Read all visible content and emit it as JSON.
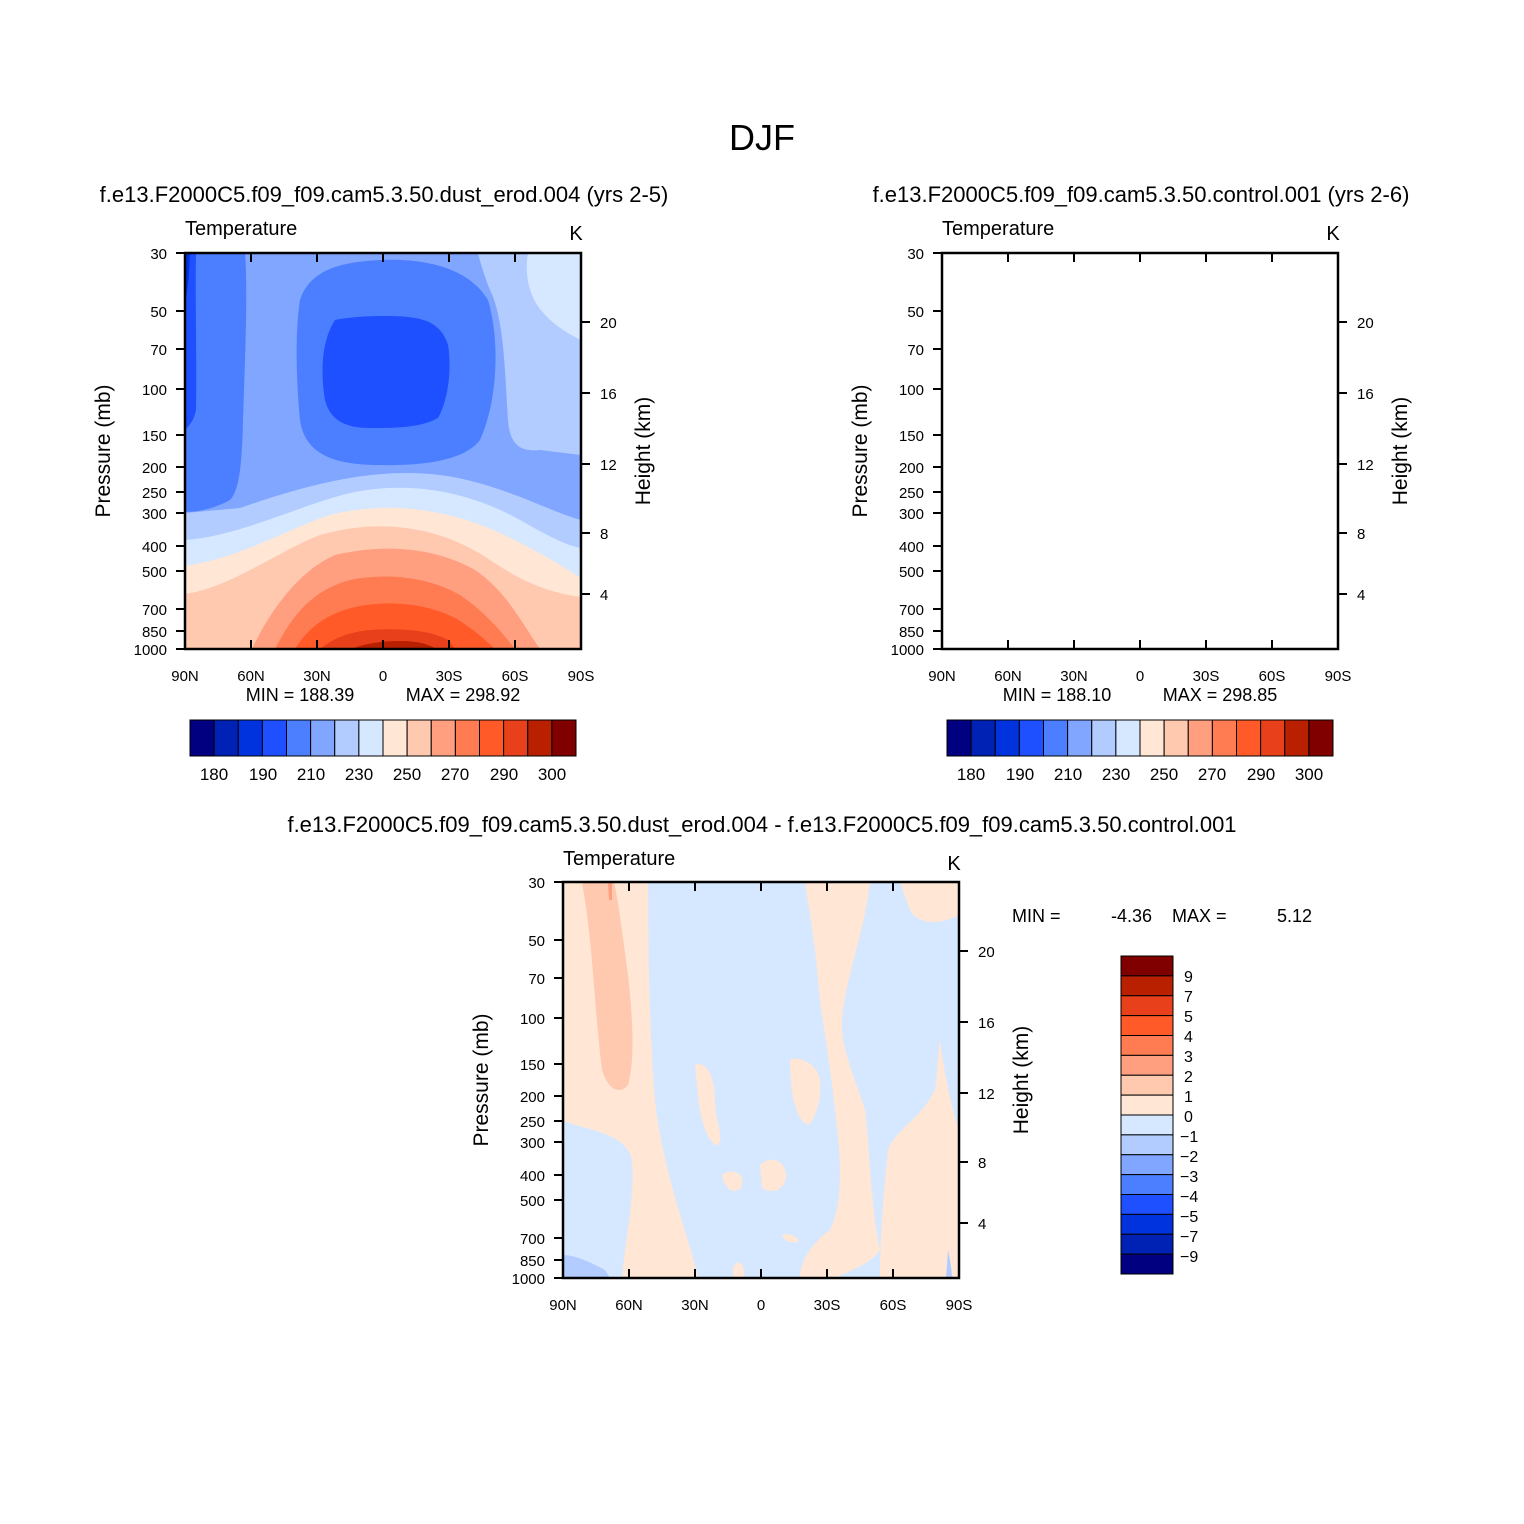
{
  "figure": {
    "title": "DJF"
  },
  "colors": {
    "abs_palette": [
      "#000080",
      "#0022b4",
      "#0033dd",
      "#1e50ff",
      "#4b7fff",
      "#80a6ff",
      "#b3ccff",
      "#d6e8ff",
      "#ffe6d5",
      "#ffc9b0",
      "#ff9f80",
      "#ff7b52",
      "#ff5a28",
      "#e8401a",
      "#b82000",
      "#800000"
    ],
    "diff_palette": [
      "#000080",
      "#0022b4",
      "#0033dd",
      "#1e50ff",
      "#4b7fff",
      "#80a6ff",
      "#b3ccff",
      "#d6e8ff",
      "#ffe6d5",
      "#ffc9b0",
      "#ff9f80",
      "#ff7b52",
      "#ff5a28",
      "#e8401a",
      "#b82000",
      "#800000"
    ]
  },
  "chart_data": [
    {
      "id": "panel-dust",
      "type": "heatmap",
      "title": "f.e13.F2000C5.f09_f09.cam5.3.50.dust_erod.004 (yrs 2-5)",
      "variable": "Temperature",
      "units": "K",
      "xlabel": "",
      "ylabel": "Pressure (mb)",
      "ylabel_right": "Height (km)",
      "x_ticks": [
        "90N",
        "60N",
        "30N",
        "0",
        "30S",
        "60S",
        "90S"
      ],
      "y_ticks": [
        30,
        50,
        70,
        100,
        150,
        200,
        250,
        300,
        400,
        500,
        700,
        850,
        1000
      ],
      "y_right_ticks": [
        20,
        16,
        12,
        8,
        4
      ],
      "ylim": [
        1000,
        30
      ],
      "min_label": "MIN = 188.39",
      "max_label": "MAX = 298.92",
      "levels": [
        180,
        185,
        190,
        200,
        210,
        220,
        230,
        240,
        250,
        260,
        270,
        280,
        290,
        295,
        300
      ],
      "colorbar_labels": [
        "180",
        "190",
        "210",
        "230",
        "250",
        "270",
        "290",
        "300"
      ]
    },
    {
      "id": "panel-control",
      "type": "heatmap",
      "title": "f.e13.F2000C5.f09_f09.cam5.3.50.control.001 (yrs 2-6)",
      "variable": "Temperature",
      "units": "K",
      "xlabel": "",
      "ylabel": "Pressure (mb)",
      "ylabel_right": "Height (km)",
      "x_ticks": [
        "90N",
        "60N",
        "30N",
        "0",
        "30S",
        "60S",
        "90S"
      ],
      "y_ticks": [
        30,
        50,
        70,
        100,
        150,
        200,
        250,
        300,
        400,
        500,
        700,
        850,
        1000
      ],
      "y_right_ticks": [
        20,
        16,
        12,
        8,
        4
      ],
      "ylim": [
        1000,
        30
      ],
      "min_label": "MIN = 188.10",
      "max_label": "MAX = 298.85",
      "levels": [
        180,
        185,
        190,
        200,
        210,
        220,
        230,
        240,
        250,
        260,
        270,
        280,
        290,
        295,
        300
      ],
      "colorbar_labels": [
        "180",
        "190",
        "210",
        "230",
        "250",
        "270",
        "290",
        "300"
      ]
    },
    {
      "id": "panel-diff",
      "type": "heatmap",
      "title": "f.e13.F2000C5.f09_f09.cam5.3.50.dust_erod.004 - f.e13.F2000C5.f09_f09.cam5.3.50.control.001",
      "variable": "Temperature",
      "units": "K",
      "xlabel": "",
      "ylabel": "Pressure (mb)",
      "ylabel_right": "Height (km)",
      "x_ticks": [
        "90N",
        "60N",
        "30N",
        "0",
        "30S",
        "60S",
        "90S"
      ],
      "y_ticks": [
        30,
        50,
        70,
        100,
        150,
        200,
        250,
        300,
        400,
        500,
        700,
        850,
        1000
      ],
      "y_right_ticks": [
        20,
        16,
        12,
        8,
        4
      ],
      "ylim": [
        1000,
        30
      ],
      "min_label": "MIN =",
      "min_value": "-4.36",
      "max_label": "MAX =",
      "max_value": "5.12",
      "levels": [
        9,
        7,
        5,
        4,
        3,
        2,
        1,
        0,
        -1,
        -2,
        -3,
        -4,
        -5,
        -7,
        -9
      ],
      "colorbar_labels": [
        "9",
        "7",
        "5",
        "4",
        "3",
        "2",
        "1",
        "0",
        "−1",
        "−2",
        "−3",
        "−4",
        "−5",
        "−7",
        "−9"
      ]
    }
  ]
}
